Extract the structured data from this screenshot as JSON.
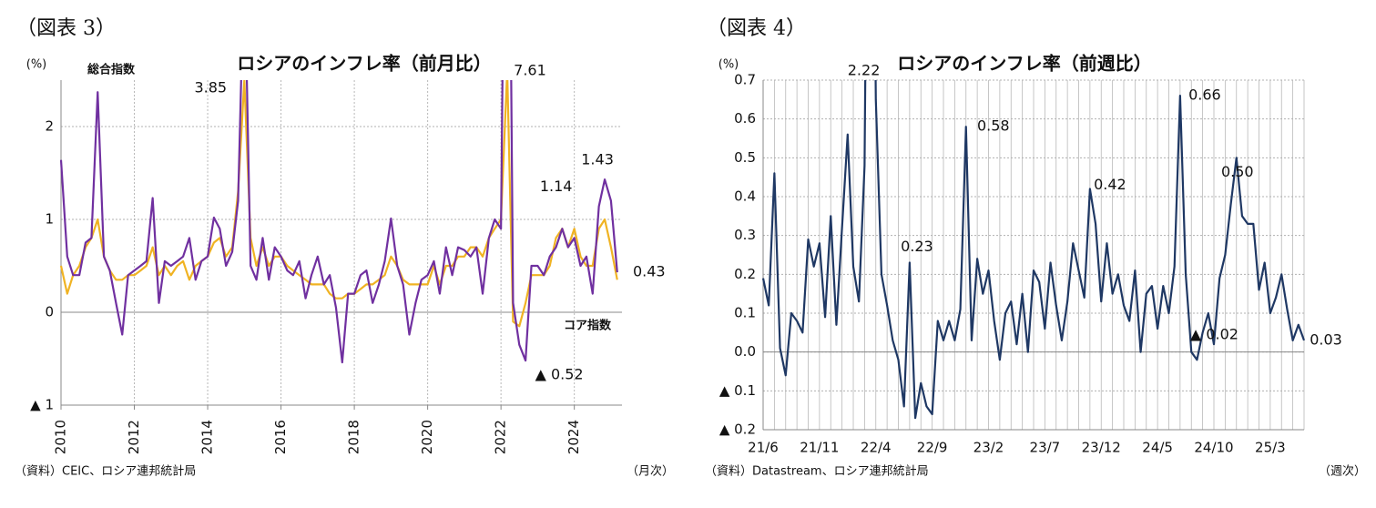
{
  "chart_data": [
    {
      "type": "line",
      "figure_label": "（図表 3）",
      "title": "ロシアのインフレ率（前月比）",
      "y_unit": "(%)",
      "source": "（資料）CEIC、ロシア連邦統計局",
      "frequency_note": "（月次）",
      "x": [
        2010,
        2010.17,
        2010.33,
        2010.5,
        2010.67,
        2010.83,
        2011,
        2011.17,
        2011.33,
        2011.5,
        2011.67,
        2011.83,
        2012,
        2012.17,
        2012.33,
        2012.5,
        2012.67,
        2012.83,
        2013,
        2013.17,
        2013.33,
        2013.5,
        2013.67,
        2013.83,
        2014,
        2014.17,
        2014.33,
        2014.5,
        2014.67,
        2014.83,
        2015,
        2015.17,
        2015.33,
        2015.5,
        2015.67,
        2015.83,
        2016,
        2016.17,
        2016.33,
        2016.5,
        2016.67,
        2016.83,
        2017,
        2017.17,
        2017.33,
        2017.5,
        2017.67,
        2017.83,
        2018,
        2018.17,
        2018.33,
        2018.5,
        2018.67,
        2018.83,
        2019,
        2019.17,
        2019.33,
        2019.5,
        2019.67,
        2019.83,
        2020,
        2020.17,
        2020.33,
        2020.5,
        2020.67,
        2020.83,
        2021,
        2021.17,
        2021.33,
        2021.5,
        2021.67,
        2021.83,
        2022,
        2022.17,
        2022.33,
        2022.5,
        2022.67,
        2022.83,
        2023,
        2023.17,
        2023.33,
        2023.5,
        2023.67,
        2023.83,
        2024,
        2024.17,
        2024.33,
        2024.5,
        2024.67,
        2024.83,
        2025,
        2025.17
      ],
      "xlim": [
        2010,
        2025.3
      ],
      "xticks": [
        2010,
        2012,
        2014,
        2016,
        2018,
        2020,
        2022,
        2024
      ],
      "ylim": [
        -1,
        2.5
      ],
      "yticks": [
        {
          "value": -1,
          "label": "▲ 1"
        },
        0,
        1,
        2
      ],
      "grid": true,
      "series": [
        {
          "name": "総合指数",
          "color": "#7030a0",
          "values": [
            1.64,
            0.6,
            0.4,
            0.4,
            0.75,
            0.8,
            2.37,
            0.6,
            0.45,
            0.1,
            -0.24,
            0.4,
            0.45,
            0.5,
            0.55,
            1.23,
            0.1,
            0.55,
            0.5,
            0.55,
            0.6,
            0.8,
            0.35,
            0.55,
            0.6,
            1.02,
            0.9,
            0.5,
            0.65,
            1.2,
            3.85,
            0.5,
            0.35,
            0.8,
            0.35,
            0.7,
            0.6,
            0.45,
            0.4,
            0.55,
            0.15,
            0.4,
            0.6,
            0.3,
            0.4,
            0.05,
            -0.54,
            0.2,
            0.2,
            0.4,
            0.45,
            0.1,
            0.3,
            0.55,
            1.01,
            0.5,
            0.3,
            -0.24,
            0.1,
            0.35,
            0.4,
            0.55,
            0.2,
            0.7,
            0.4,
            0.7,
            0.67,
            0.6,
            0.7,
            0.2,
            0.8,
            1.0,
            0.9,
            7.61,
            0.1,
            -0.35,
            -0.52,
            0.5,
            0.5,
            0.4,
            0.6,
            0.7,
            0.9,
            0.7,
            0.8,
            0.5,
            0.6,
            0.2,
            1.14,
            1.43,
            1.2,
            0.43
          ],
          "value_labels": [
            null,
            null,
            null,
            null,
            null,
            null,
            null,
            null,
            null,
            null,
            null,
            null,
            null,
            null,
            null,
            null,
            null,
            null,
            null,
            null,
            null,
            null,
            null,
            null,
            null,
            null,
            null,
            null,
            null,
            null,
            "3.85",
            null,
            null,
            null,
            null,
            null,
            null,
            null,
            null,
            null,
            null,
            null,
            null,
            null,
            null,
            null,
            null,
            null,
            null,
            null,
            null,
            null,
            null,
            null,
            null,
            null,
            null,
            null,
            null,
            null,
            null,
            null,
            null,
            null,
            null,
            null,
            null,
            null,
            null,
            null,
            null,
            null,
            null,
            "7.61",
            null,
            null,
            "▲ 0.52",
            null,
            null,
            null,
            null,
            null,
            null,
            null,
            null,
            null,
            null,
            null,
            "1.14",
            "1.43",
            null,
            "0.43"
          ]
        },
        {
          "name": "コア指数",
          "color": "#f0b323",
          "values": [
            0.5,
            0.2,
            0.4,
            0.5,
            0.7,
            0.8,
            1.0,
            0.6,
            0.45,
            0.35,
            0.35,
            0.4,
            0.4,
            0.45,
            0.5,
            0.7,
            0.4,
            0.5,
            0.4,
            0.5,
            0.55,
            0.35,
            0.5,
            0.55,
            0.6,
            0.75,
            0.8,
            0.6,
            0.7,
            1.3,
            2.5,
            0.8,
            0.5,
            0.7,
            0.5,
            0.6,
            0.6,
            0.5,
            0.45,
            0.4,
            0.35,
            0.3,
            0.3,
            0.3,
            0.2,
            0.15,
            0.15,
            0.2,
            0.2,
            0.25,
            0.3,
            0.3,
            0.35,
            0.4,
            0.6,
            0.5,
            0.35,
            0.3,
            0.3,
            0.3,
            0.3,
            0.5,
            0.3,
            0.5,
            0.5,
            0.6,
            0.6,
            0.7,
            0.7,
            0.6,
            0.8,
            0.9,
            1.0,
            2.6,
            -0.1,
            -0.15,
            0.1,
            0.4,
            0.4,
            0.4,
            0.5,
            0.8,
            0.9,
            0.7,
            0.9,
            0.6,
            0.5,
            0.5,
            0.9,
            1.0,
            0.7,
            0.35
          ]
        }
      ]
    },
    {
      "type": "line",
      "figure_label": "（図表 4）",
      "title": "ロシアのインフレ率（前週比）",
      "y_unit": "(%)",
      "source": "（資料）Datastream、ロシア連邦統計局",
      "frequency_note": "（週次）",
      "categories": [
        "21/6",
        null,
        null,
        null,
        null,
        null,
        null,
        null,
        null,
        null,
        "21/11",
        null,
        null,
        null,
        null,
        null,
        null,
        null,
        null,
        null,
        "22/4",
        null,
        null,
        null,
        null,
        null,
        null,
        null,
        null,
        null,
        "22/9",
        null,
        null,
        null,
        null,
        null,
        null,
        null,
        null,
        null,
        "23/2",
        null,
        null,
        null,
        null,
        null,
        null,
        null,
        null,
        null,
        "23/7",
        null,
        null,
        null,
        null,
        null,
        null,
        null,
        null,
        null,
        "23/12",
        null,
        null,
        null,
        null,
        null,
        null,
        null,
        null,
        null,
        "24/5",
        null,
        null,
        null,
        null,
        null,
        null,
        null,
        null,
        null,
        "24/10",
        null,
        null,
        null,
        null,
        null,
        null,
        null,
        null,
        null,
        "25/3",
        null,
        null,
        null,
        null,
        null,
        null
      ],
      "color": "#1f3864",
      "values": [
        0.19,
        0.12,
        0.46,
        0.01,
        -0.06,
        0.1,
        0.08,
        0.05,
        0.29,
        0.22,
        0.28,
        0.09,
        0.35,
        0.07,
        0.32,
        0.56,
        0.22,
        0.13,
        0.48,
        2.22,
        0.65,
        0.2,
        0.12,
        0.03,
        -0.02,
        -0.14,
        0.23,
        -0.17,
        -0.08,
        -0.14,
        -0.16,
        0.08,
        0.03,
        0.08,
        0.03,
        0.11,
        0.58,
        0.03,
        0.24,
        0.15,
        0.21,
        0.08,
        -0.02,
        0.1,
        0.13,
        0.02,
        0.15,
        0.0,
        0.21,
        0.18,
        0.06,
        0.23,
        0.12,
        0.03,
        0.13,
        0.28,
        0.21,
        0.14,
        0.42,
        0.33,
        0.13,
        0.28,
        0.15,
        0.2,
        0.12,
        0.08,
        0.21,
        0.0,
        0.15,
        0.17,
        0.06,
        0.17,
        0.1,
        0.22,
        0.66,
        0.2,
        0.0,
        -0.02,
        0.05,
        0.1,
        0.02,
        0.19,
        0.25,
        0.38,
        0.5,
        0.35,
        0.33,
        0.33,
        0.16,
        0.23,
        0.1,
        0.14,
        0.2,
        0.11,
        0.03,
        0.07,
        0.03
      ],
      "value_labels": [
        null,
        null,
        null,
        null,
        null,
        null,
        null,
        null,
        null,
        null,
        null,
        null,
        null,
        null,
        null,
        null,
        null,
        null,
        null,
        "2.22",
        null,
        null,
        null,
        null,
        null,
        null,
        "0.23",
        null,
        null,
        null,
        null,
        null,
        null,
        null,
        null,
        null,
        "0.58",
        null,
        null,
        null,
        null,
        null,
        null,
        null,
        null,
        null,
        null,
        null,
        null,
        null,
        null,
        null,
        null,
        null,
        null,
        null,
        null,
        null,
        "0.42",
        null,
        null,
        null,
        null,
        null,
        null,
        null,
        null,
        null,
        null,
        null,
        null,
        null,
        null,
        null,
        "0.66",
        null,
        null,
        "▲ 0.02",
        null,
        null,
        null,
        null,
        null,
        null,
        "0.50",
        null,
        null,
        null,
        null,
        null,
        null,
        null,
        null,
        null,
        null,
        null,
        "0.03"
      ],
      "ylim": [
        -0.2,
        0.7
      ],
      "yticks": [
        {
          "value": -0.2,
          "label": "▲ 0.2"
        },
        {
          "value": -0.1,
          "label": "▲ 0.1"
        },
        {
          "value": 0,
          "label": "0.0"
        },
        0.1,
        0.2,
        0.3,
        0.4,
        0.5,
        0.6,
        0.7
      ],
      "grid": true
    }
  ]
}
